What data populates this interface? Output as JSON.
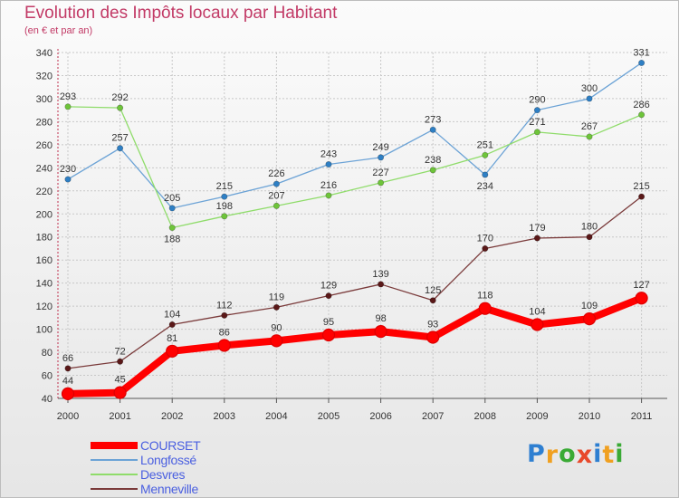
{
  "header": {
    "title": "Evolution des Impôts locaux par Habitant",
    "subtitle": "(en € et par an)"
  },
  "logo": {
    "text": "Proxiti",
    "letters": [
      "P",
      "r",
      "o",
      "x",
      "i",
      "t",
      "i"
    ],
    "colors": [
      "#2e7fd1",
      "#f0a020",
      "#3aaa35",
      "#e8492b",
      "#2e7fd1",
      "#f0a020",
      "#3aaa35"
    ]
  },
  "chart_data": {
    "type": "line",
    "title": "Evolution des Impôts locaux par Habitant",
    "subtitle": "(en € et par an)",
    "xlabel": "",
    "ylabel": "",
    "x": [
      "2000",
      "2001",
      "2002",
      "2003",
      "2004",
      "2005",
      "2006",
      "2007",
      "2008",
      "2009",
      "2010",
      "2011"
    ],
    "ylim": [
      40,
      340
    ],
    "yticks": [
      40,
      60,
      80,
      100,
      120,
      140,
      160,
      180,
      200,
      220,
      240,
      260,
      280,
      300,
      320,
      340
    ],
    "ytick_labels": [
      "40",
      "60",
      "80",
      "100",
      "120",
      "140",
      "160",
      "180",
      "200",
      "220",
      "240",
      "260",
      "280",
      "300",
      "320",
      "340"
    ],
    "grid": true,
    "legend_position": "bottom-left",
    "series": [
      {
        "name": "COURSET",
        "color": "#ff0000",
        "marker_color": "#dd0000",
        "bold": true,
        "values": [
          44,
          45,
          81,
          86,
          90,
          95,
          98,
          93,
          118,
          104,
          109,
          127
        ],
        "labels": [
          "44",
          "45",
          "81",
          "86",
          "90",
          "95",
          "98",
          "93",
          "118",
          "104",
          "109",
          "127"
        ],
        "label_pos": [
          "above",
          "above",
          "above",
          "above",
          "above",
          "above",
          "above",
          "above",
          "above",
          "above",
          "above",
          "above"
        ]
      },
      {
        "name": "Longfossé",
        "color": "#6ca3d6",
        "marker_color": "#2e7fc4",
        "bold": false,
        "values": [
          230,
          257,
          205,
          215,
          226,
          243,
          249,
          273,
          234,
          290,
          300,
          331
        ],
        "labels": [
          "230",
          "257",
          "205",
          "215",
          "226",
          "243",
          "249",
          "273",
          "234",
          "290",
          "300",
          "331"
        ],
        "label_pos": [
          "above",
          "above",
          "above",
          "above",
          "above",
          "above",
          "above",
          "above",
          "below",
          "above",
          "above",
          "above"
        ]
      },
      {
        "name": "Desvres",
        "color": "#8fdc6a",
        "marker_color": "#6ec43a",
        "bold": false,
        "values": [
          293,
          292,
          188,
          198,
          207,
          216,
          227,
          238,
          251,
          271,
          267,
          286
        ],
        "labels": [
          "293",
          "292",
          "188",
          "198",
          "207",
          "216",
          "227",
          "238",
          "251",
          "271",
          "267",
          "286"
        ],
        "label_pos": [
          "above",
          "above",
          "below",
          "above",
          "above",
          "above",
          "above",
          "above",
          "above",
          "above",
          "above",
          "above"
        ]
      },
      {
        "name": "Menneville",
        "color": "#7a3a3a",
        "marker_color": "#5a1818",
        "bold": false,
        "values": [
          66,
          72,
          104,
          112,
          119,
          129,
          139,
          125,
          170,
          179,
          180,
          215
        ],
        "labels": [
          "66",
          "72",
          "104",
          "112",
          "119",
          "129",
          "139",
          "125",
          "170",
          "179",
          "180",
          "215"
        ],
        "label_pos": [
          "above",
          "above",
          "above",
          "above",
          "above",
          "above",
          "above",
          "above",
          "above",
          "above",
          "above",
          "above"
        ]
      }
    ]
  }
}
